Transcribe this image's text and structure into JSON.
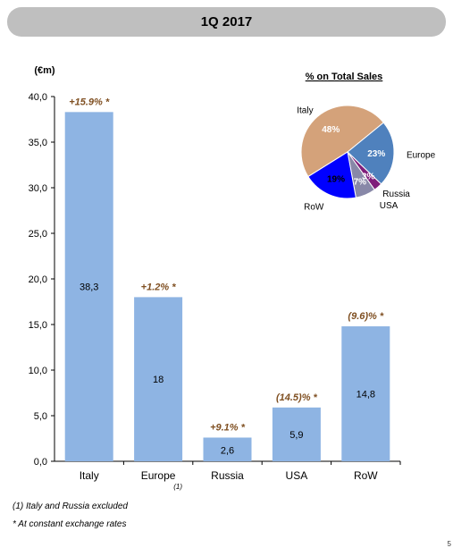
{
  "header": {
    "title": "1Q 2017"
  },
  "chart_data": [
    {
      "type": "bar",
      "unit_label": "(€m)",
      "categories": [
        "Italy",
        "Europe",
        "Russia",
        "USA",
        "RoW"
      ],
      "category_superscripts": [
        "",
        "(1)",
        "",
        "",
        ""
      ],
      "values": [
        38.3,
        18,
        2.6,
        5.9,
        14.8
      ],
      "value_labels": [
        "38,3",
        "18",
        "2,6",
        "5,9",
        "14,8"
      ],
      "growth_labels": [
        "+15.9% *",
        "+1.2% *",
        "+9.1% *",
        "(14.5)% *",
        "(9.6)% *"
      ],
      "ylim": [
        0,
        40
      ],
      "yticks": [
        "0,0",
        "5,0",
        "10,0",
        "15,0",
        "20,0",
        "25,0",
        "30,0",
        "35,0",
        "40,0"
      ],
      "bar_color": "#8eb4e3",
      "growth_color": "#7f4f21",
      "grid": false
    },
    {
      "type": "pie",
      "title": "% on Total Sales",
      "slices": [
        {
          "label": "Italy",
          "value": 48,
          "pct_label": "48%",
          "color": "#d4a27a"
        },
        {
          "label": "Europe",
          "value": 23,
          "pct_label": "23%",
          "color": "#4f81bd"
        },
        {
          "label": "Russia",
          "value": 3,
          "pct_label": "3%",
          "color": "#7f1e7a"
        },
        {
          "label": "USA",
          "value": 7,
          "pct_label": "7%",
          "color": "#8888a8"
        },
        {
          "label": "RoW",
          "value": 19,
          "pct_label": "19%",
          "color": "#0000ff"
        }
      ]
    }
  ],
  "footnotes": {
    "note1": "(1)   Italy and Russia excluded",
    "note2": "* At constant exchange rates"
  },
  "page_number": "5"
}
